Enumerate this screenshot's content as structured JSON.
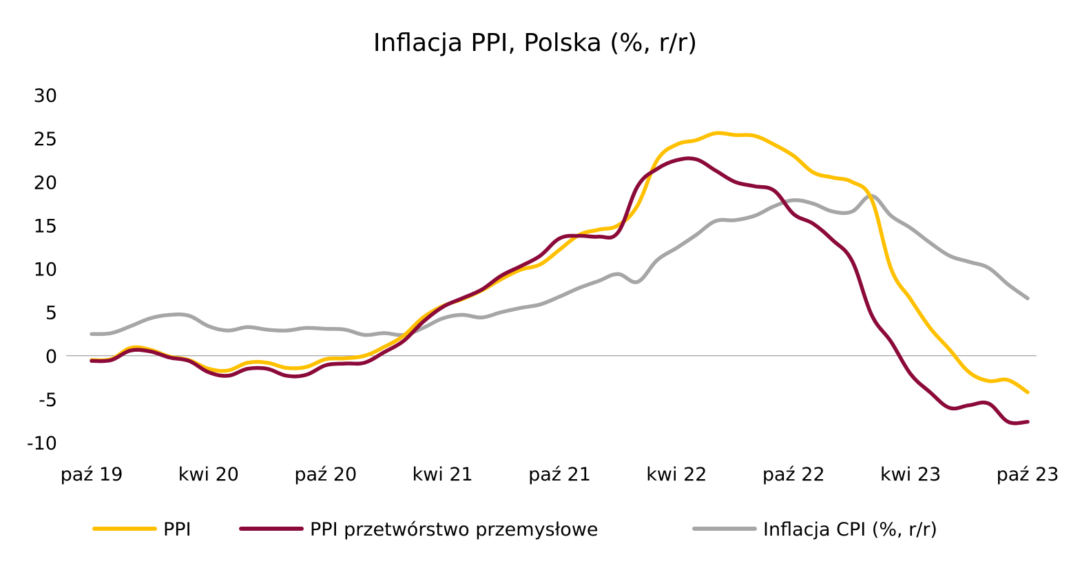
{
  "chart_data": {
    "type": "line",
    "title": "Inflacja PPI, Polska (%, r/r)",
    "xlabel": "",
    "ylabel": "",
    "ylim": [
      -10,
      30
    ],
    "yticks": [
      "30",
      "25",
      "20",
      "15",
      "10",
      "5",
      "0",
      "-5",
      "-10"
    ],
    "ytick_values": [
      30,
      25,
      20,
      15,
      10,
      5,
      0,
      -5,
      -10
    ],
    "xtick_labels": [
      "paź 19",
      "kwi 20",
      "paź 20",
      "kwi 21",
      "paź 21",
      "kwi 22",
      "paź 22",
      "kwi 23",
      "paź 23"
    ],
    "xtick_indices": [
      0,
      6,
      12,
      18,
      24,
      30,
      36,
      42,
      48
    ],
    "x": [
      "paź 19",
      "lis 19",
      "gru 19",
      "sty 20",
      "lut 20",
      "mar 20",
      "kwi 20",
      "maj 20",
      "cze 20",
      "lip 20",
      "sie 20",
      "wrz 20",
      "paź 20",
      "lis 20",
      "gru 20",
      "sty 21",
      "lut 21",
      "mar 21",
      "kwi 21",
      "maj 21",
      "cze 21",
      "lip 21",
      "sie 21",
      "wrz 21",
      "paź 21",
      "lis 21",
      "gru 21",
      "sty 22",
      "lut 22",
      "mar 22",
      "kwi 22",
      "maj 22",
      "cze 22",
      "lip 22",
      "sie 22",
      "wrz 22",
      "paź 22",
      "lis 22",
      "gru 22",
      "sty 23",
      "lut 23",
      "mar 23",
      "kwi 23",
      "maj 23",
      "cze 23",
      "lip 23",
      "sie 23",
      "wrz 23",
      "paź 23"
    ],
    "grid": false,
    "legend_position": "bottom",
    "series": [
      {
        "name": "PPI",
        "color": "#FFC000",
        "values": [
          -0.5,
          -0.4,
          0.9,
          0.7,
          -0.1,
          -0.5,
          -1.5,
          -1.7,
          -0.8,
          -0.8,
          -1.4,
          -1.3,
          -0.4,
          -0.3,
          0.0,
          1.0,
          2.3,
          4.4,
          5.7,
          6.5,
          7.5,
          8.8,
          9.9,
          10.5,
          12.2,
          13.9,
          14.5,
          15.0,
          17.3,
          22.5,
          24.3,
          24.8,
          25.6,
          25.4,
          25.3,
          24.3,
          23.0,
          21.1,
          20.5,
          20.0,
          18.0,
          10.0,
          6.5,
          3.2,
          0.7,
          -1.9,
          -2.9,
          -2.8,
          -4.2
        ]
      },
      {
        "name": "PPI przetwórstwo przemysłowe",
        "color": "#8B0A3A",
        "values": [
          -0.6,
          -0.5,
          0.6,
          0.5,
          -0.2,
          -0.6,
          -1.9,
          -2.3,
          -1.5,
          -1.5,
          -2.3,
          -2.2,
          -1.1,
          -0.9,
          -0.8,
          0.4,
          1.7,
          3.9,
          5.6,
          6.6,
          7.6,
          9.2,
          10.3,
          11.5,
          13.5,
          13.8,
          13.7,
          14.2,
          19.5,
          21.5,
          22.5,
          22.6,
          21.3,
          20.0,
          19.5,
          19.0,
          16.3,
          15.2,
          13.3,
          10.9,
          4.7,
          1.6,
          -2.1,
          -4.2,
          -6.0,
          -5.7,
          -5.5,
          -7.6,
          -7.6
        ]
      },
      {
        "name": "Inflacja CPI (%, r/r)",
        "color": "#A6A6A6",
        "values": [
          2.5,
          2.6,
          3.4,
          4.3,
          4.7,
          4.6,
          3.4,
          2.9,
          3.3,
          3.0,
          2.9,
          3.2,
          3.1,
          3.0,
          2.4,
          2.6,
          2.4,
          3.2,
          4.3,
          4.7,
          4.4,
          5.0,
          5.5,
          5.9,
          6.8,
          7.8,
          8.6,
          9.4,
          8.5,
          11.0,
          12.4,
          13.9,
          15.5,
          15.6,
          16.1,
          17.2,
          17.9,
          17.5,
          16.6,
          16.6,
          18.4,
          16.1,
          14.7,
          13.0,
          11.5,
          10.8,
          10.1,
          8.2,
          6.6
        ]
      }
    ]
  }
}
